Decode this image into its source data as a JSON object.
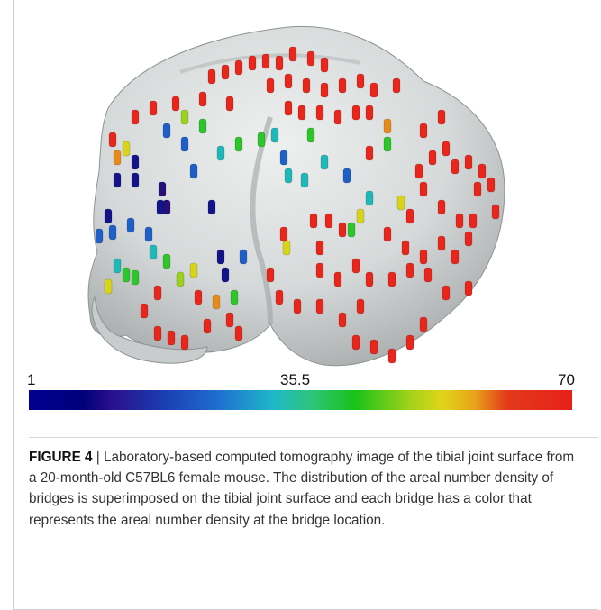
{
  "figure": {
    "label": "FIGURE 4",
    "separator": "|",
    "caption_text": "Laboratory-based computed tomography image of the tibial joint surface from a 20-month-old C57BL6 female mouse. The distribution of the areal number density of bridges is superimposed on the tibial joint surface and each bridge has a color that represents the areal number density at the bridge location."
  },
  "colorbar": {
    "min_label": "1",
    "mid_label": "35.5",
    "max_label": "70",
    "min_value": 1,
    "max_value": 70,
    "colors": [
      "#00008f",
      "#2a0e8a",
      "#1f6fd0",
      "#1fb8c8",
      "#19c21a",
      "#e0d51a",
      "#e8201a"
    ]
  },
  "surface": {
    "fill_color": "#d9dcdc",
    "bridge_colors": {
      "red": "#e8261c",
      "orange": "#e88a1a",
      "yellow": "#d8d41a",
      "lime": "#9bd21a",
      "green": "#2cc52a",
      "teal": "#1fb8b8",
      "blue": "#1f5fc8",
      "navy": "#14148a",
      "purple": "#2a0e7a"
    }
  }
}
